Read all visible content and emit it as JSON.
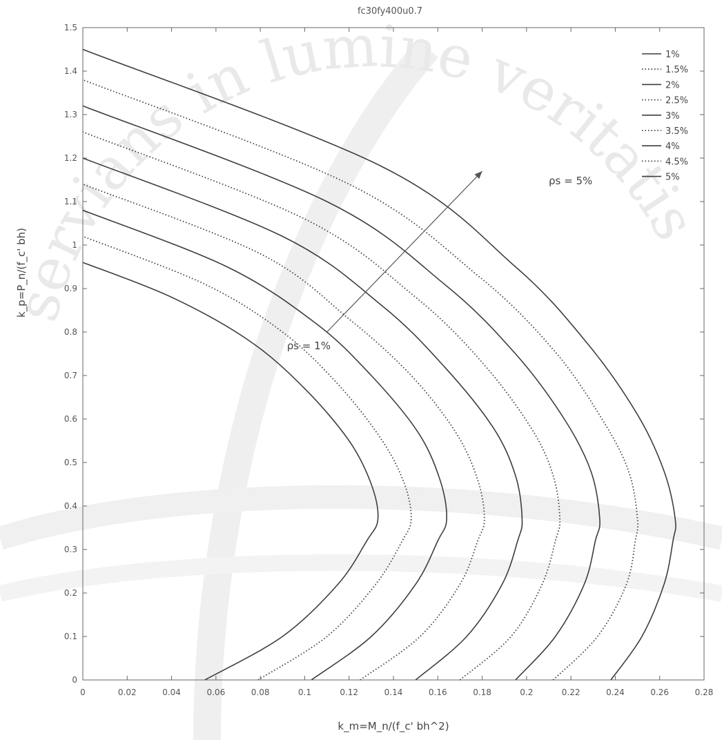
{
  "chart_data": {
    "type": "line",
    "title": "fc30fy400u0.7",
    "xlabel": "k_m=M_n/(f_c' bh^2)",
    "ylabel": "k_p=P_n/(f_c' bh)",
    "xlim": [
      0,
      0.28
    ],
    "ylim": [
      0,
      1.5
    ],
    "xticks": [
      "0",
      "0.02",
      "0.04",
      "0.06",
      "0.08",
      "0.1",
      "0.12",
      "0.14",
      "0.16",
      "0.18",
      "0.2",
      "0.22",
      "0.24",
      "0.26",
      "0.28"
    ],
    "yticks": [
      "0",
      "0.1",
      "0.2",
      "0.3",
      "0.4",
      "0.5",
      "0.6",
      "0.7",
      "0.8",
      "0.9",
      "1",
      "1.1",
      "1.2",
      "1.3",
      "1.4",
      "1.5"
    ],
    "legend_position": "top-right",
    "grid": false,
    "series": [
      {
        "name": "1%",
        "style": "solid",
        "x": [
          0.055,
          0.09,
          0.115,
          0.128,
          0.133,
          0.13,
          0.12,
          0.1,
          0.075,
          0.04,
          0.0
        ],
        "y": [
          0,
          0.1,
          0.22,
          0.32,
          0.37,
          0.45,
          0.55,
          0.67,
          0.78,
          0.88,
          0.96
        ]
      },
      {
        "name": "1.5%",
        "style": "dotted",
        "x": [
          0.079,
          0.11,
          0.132,
          0.144,
          0.148,
          0.145,
          0.135,
          0.115,
          0.09,
          0.055,
          0.0
        ],
        "y": [
          0,
          0.1,
          0.22,
          0.32,
          0.37,
          0.45,
          0.55,
          0.68,
          0.8,
          0.91,
          1.02
        ]
      },
      {
        "name": "2%",
        "style": "solid",
        "x": [
          0.103,
          0.13,
          0.15,
          0.16,
          0.164,
          0.161,
          0.151,
          0.13,
          0.105,
          0.065,
          0.0
        ],
        "y": [
          0,
          0.1,
          0.22,
          0.32,
          0.37,
          0.46,
          0.57,
          0.7,
          0.82,
          0.95,
          1.08
        ]
      },
      {
        "name": "2.5%",
        "style": "dotted",
        "x": [
          0.125,
          0.152,
          0.17,
          0.178,
          0.181,
          0.178,
          0.168,
          0.148,
          0.12,
          0.08,
          0.0
        ],
        "y": [
          0,
          0.1,
          0.22,
          0.32,
          0.37,
          0.46,
          0.57,
          0.7,
          0.83,
          0.98,
          1.14
        ]
      },
      {
        "name": "3%",
        "style": "solid",
        "x": [
          0.15,
          0.173,
          0.189,
          0.196,
          0.198,
          0.195,
          0.185,
          0.163,
          0.135,
          0.09,
          0.0
        ],
        "y": [
          0,
          0.1,
          0.22,
          0.32,
          0.37,
          0.47,
          0.58,
          0.72,
          0.86,
          1.02,
          1.2
        ]
      },
      {
        "name": "3.5%",
        "style": "dotted",
        "x": [
          0.17,
          0.193,
          0.207,
          0.213,
          0.215,
          0.212,
          0.202,
          0.18,
          0.15,
          0.1,
          0.0
        ],
        "y": [
          0,
          0.1,
          0.22,
          0.32,
          0.37,
          0.47,
          0.58,
          0.73,
          0.88,
          1.06,
          1.26
        ]
      },
      {
        "name": "4%",
        "style": "solid",
        "x": [
          0.195,
          0.213,
          0.226,
          0.231,
          0.233,
          0.229,
          0.217,
          0.195,
          0.163,
          0.11,
          0.0
        ],
        "y": [
          0,
          0.1,
          0.22,
          0.32,
          0.37,
          0.48,
          0.6,
          0.75,
          0.91,
          1.1,
          1.32
        ]
      },
      {
        "name": "4.5%",
        "style": "dotted",
        "x": [
          0.212,
          0.232,
          0.245,
          0.249,
          0.25,
          0.246,
          0.234,
          0.212,
          0.178,
          0.12,
          0.0
        ],
        "y": [
          0,
          0.1,
          0.22,
          0.32,
          0.37,
          0.48,
          0.6,
          0.76,
          0.93,
          1.14,
          1.38
        ]
      },
      {
        "name": "5%",
        "style": "solid",
        "x": [
          0.238,
          0.252,
          0.262,
          0.266,
          0.267,
          0.262,
          0.25,
          0.228,
          0.195,
          0.135,
          0.0
        ],
        "y": [
          0,
          0.1,
          0.22,
          0.32,
          0.37,
          0.48,
          0.61,
          0.77,
          0.95,
          1.18,
          1.45
        ]
      }
    ],
    "annotations": [
      {
        "text": "ρs = 5%",
        "x": 0.21,
        "y": 1.14
      },
      {
        "text": "ρs = 1%",
        "x": 0.092,
        "y": 0.76
      }
    ],
    "arrow": {
      "from": [
        0.11,
        0.8
      ],
      "to": [
        0.18,
        1.17
      ]
    }
  },
  "watermark": "servians in lumine veritatis",
  "colors": {
    "line": "#3d3d3d",
    "axis": "#555555",
    "watermark": "#e9e9e9"
  }
}
